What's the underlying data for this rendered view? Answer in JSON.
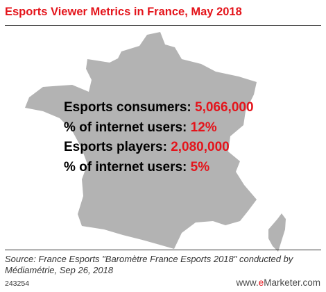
{
  "title": "Esports Viewer Metrics in France, May 2018",
  "colors": {
    "accent": "#e4141b",
    "map_fill": "#b3b3b3",
    "text": "#000000",
    "footer_text": "#333333"
  },
  "chart_data": {
    "type": "table",
    "title": "Esports Viewer Metrics in France, May 2018",
    "background": "silhouette map of France",
    "rows": [
      {
        "label": "Esports consumers:",
        "value": "5,066,000"
      },
      {
        "label": "% of internet users:",
        "value": "12%"
      },
      {
        "label": "Esports players:",
        "value": "2,080,000"
      },
      {
        "label": "% of internet users:",
        "value": "5%"
      }
    ]
  },
  "footer": {
    "source": "Source: France Esports \"Baromètre France Esports 2018\" conducted by Médiamétrie, Sep 26, 2018",
    "chart_id": "243254",
    "brand_prefix": "www.",
    "brand_e": "e",
    "brand_suffix": "Marketer.com"
  }
}
